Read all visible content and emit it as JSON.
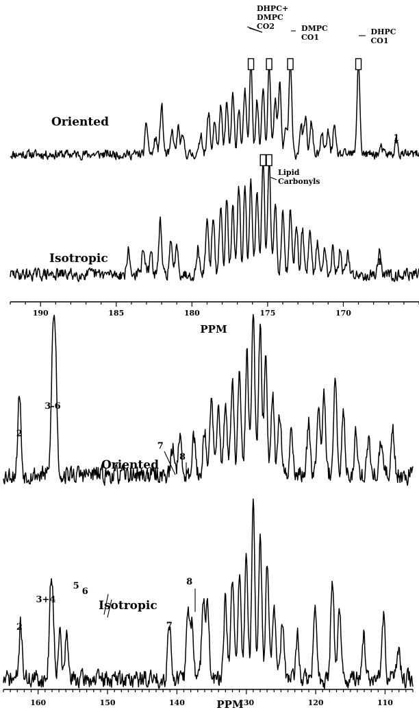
{
  "chart_data": [
    {
      "type": "line",
      "panel": "carbonyl region",
      "xlabel": "PPM",
      "xlim": [
        192,
        165
      ],
      "x_ticks": [
        190,
        185,
        180,
        175,
        170
      ],
      "series": [
        {
          "name": "Oriented",
          "peaks": [
            {
              "x": 183.0,
              "y": 0.4
            },
            {
              "x": 182.4,
              "y": 0.22
            },
            {
              "x": 182.0,
              "y": 0.66
            },
            {
              "x": 181.3,
              "y": 0.3
            },
            {
              "x": 180.9,
              "y": 0.35
            },
            {
              "x": 180.6,
              "y": 0.22
            },
            {
              "x": 179.4,
              "y": 0.28
            },
            {
              "x": 178.9,
              "y": 0.55
            },
            {
              "x": 178.5,
              "y": 0.45
            },
            {
              "x": 178.1,
              "y": 0.62
            },
            {
              "x": 177.7,
              "y": 0.68
            },
            {
              "x": 177.3,
              "y": 0.78
            },
            {
              "x": 176.9,
              "y": 0.62
            },
            {
              "x": 176.5,
              "y": 0.85
            },
            {
              "x": 176.1,
              "y": 1.25
            },
            {
              "x": 175.7,
              "y": 0.72
            },
            {
              "x": 175.3,
              "y": 0.92
            },
            {
              "x": 174.9,
              "y": 1.25
            },
            {
              "x": 174.5,
              "y": 0.7
            },
            {
              "x": 174.2,
              "y": 0.95
            },
            {
              "x": 173.8,
              "y": 0.35
            },
            {
              "x": 173.5,
              "y": 1.25
            },
            {
              "x": 172.8,
              "y": 0.4
            },
            {
              "x": 172.5,
              "y": 0.48
            },
            {
              "x": 172.1,
              "y": 0.42
            },
            {
              "x": 171.4,
              "y": 0.25
            },
            {
              "x": 171.0,
              "y": 0.3
            },
            {
              "x": 170.6,
              "y": 0.35
            },
            {
              "x": 169.0,
              "y": 1.25
            },
            {
              "x": 167.5,
              "y": 0.08
            },
            {
              "x": 166.5,
              "y": 0.18
            }
          ],
          "annotations": [
            {
              "x": 175.6,
              "lines": [
                "DHPC+",
                "DMPC",
                "CO2"
              ]
            },
            {
              "x": 173.5,
              "lines": [
                "DMPC",
                "CO1"
              ]
            },
            {
              "x": 169.0,
              "lines": [
                "DHPC",
                "CO1"
              ]
            },
            {
              "x": 166.5,
              "lines": [
                "1"
              ]
            }
          ]
        },
        {
          "name": "Isotropic",
          "peaks": [
            {
              "x": 184.2,
              "y": 0.25
            },
            {
              "x": 183.2,
              "y": 0.3
            },
            {
              "x": 182.7,
              "y": 0.22
            },
            {
              "x": 182.1,
              "y": 0.55
            },
            {
              "x": 181.4,
              "y": 0.32
            },
            {
              "x": 181.0,
              "y": 0.35
            },
            {
              "x": 179.6,
              "y": 0.28
            },
            {
              "x": 179.0,
              "y": 0.6
            },
            {
              "x": 178.6,
              "y": 0.58
            },
            {
              "x": 178.1,
              "y": 0.72
            },
            {
              "x": 177.7,
              "y": 0.82
            },
            {
              "x": 177.3,
              "y": 0.7
            },
            {
              "x": 176.9,
              "y": 0.92
            },
            {
              "x": 176.5,
              "y": 0.88
            },
            {
              "x": 176.1,
              "y": 1.0
            },
            {
              "x": 175.7,
              "y": 0.9
            },
            {
              "x": 175.3,
              "y": 1.25
            },
            {
              "x": 174.9,
              "y": 1.25
            },
            {
              "x": 174.5,
              "y": 0.75
            },
            {
              "x": 174.0,
              "y": 0.65
            },
            {
              "x": 173.5,
              "y": 0.68
            },
            {
              "x": 173.1,
              "y": 0.55
            },
            {
              "x": 172.7,
              "y": 0.48
            },
            {
              "x": 172.2,
              "y": 0.4
            },
            {
              "x": 171.7,
              "y": 0.35
            },
            {
              "x": 171.2,
              "y": 0.3
            },
            {
              "x": 170.7,
              "y": 0.28
            },
            {
              "x": 170.2,
              "y": 0.25
            },
            {
              "x": 169.7,
              "y": 0.2
            },
            {
              "x": 167.6,
              "y": 0.28
            }
          ],
          "annotations": [
            {
              "x": 175.0,
              "lines": [
                "Lipid",
                "Carbonyls"
              ]
            },
            {
              "x": 167.6,
              "lines": [
                "1"
              ]
            }
          ]
        }
      ]
    },
    {
      "type": "line",
      "panel": "aromatic region",
      "xlabel": "PPM",
      "xlim": [
        165,
        106
      ],
      "x_ticks": [
        160,
        150,
        140,
        130,
        120,
        110
      ],
      "series": [
        {
          "name": "Oriented",
          "peaks": [
            {
              "x": 162.7,
              "y": 0.55
            },
            {
              "x": 157.9,
              "y": 0.8
            },
            {
              "x": 157.5,
              "y": 0.78
            },
            {
              "x": 140.6,
              "y": 0.18
            },
            {
              "x": 139.6,
              "y": 0.28
            },
            {
              "x": 137.6,
              "y": 0.28
            },
            {
              "x": 136.0,
              "y": 0.32
            },
            {
              "x": 135.0,
              "y": 0.52
            },
            {
              "x": 134.0,
              "y": 0.45
            },
            {
              "x": 133.0,
              "y": 0.5
            },
            {
              "x": 132.0,
              "y": 0.62
            },
            {
              "x": 131.0,
              "y": 0.68
            },
            {
              "x": 129.9,
              "y": 0.82
            },
            {
              "x": 129.0,
              "y": 1.1
            },
            {
              "x": 128.0,
              "y": 1.0
            },
            {
              "x": 127.2,
              "y": 0.78
            },
            {
              "x": 126.2,
              "y": 0.58
            },
            {
              "x": 125.2,
              "y": 0.42
            },
            {
              "x": 123.5,
              "y": 0.32
            },
            {
              "x": 121.0,
              "y": 0.38
            },
            {
              "x": 119.6,
              "y": 0.52
            },
            {
              "x": 118.8,
              "y": 0.58
            },
            {
              "x": 117.2,
              "y": 0.62
            },
            {
              "x": 116.0,
              "y": 0.4
            },
            {
              "x": 114.2,
              "y": 0.28
            },
            {
              "x": 112.4,
              "y": 0.24
            },
            {
              "x": 110.6,
              "y": 0.22
            },
            {
              "x": 108.9,
              "y": 0.32
            }
          ],
          "annotations": [
            {
              "x": 162.7,
              "lines": [
                "2"
              ]
            },
            {
              "x": 157.7,
              "lines": [
                "3-6"
              ]
            },
            {
              "x": 140.6,
              "lines": [
                "7"
              ]
            },
            {
              "x": 139.4,
              "lines": [
                "8"
              ]
            }
          ]
        },
        {
          "name": "Isotropic",
          "peaks": [
            {
              "x": 162.5,
              "y": 0.38
            },
            {
              "x": 158.2,
              "y": 0.48
            },
            {
              "x": 157.9,
              "y": 0.42
            },
            {
              "x": 156.9,
              "y": 0.34
            },
            {
              "x": 155.9,
              "y": 0.3
            },
            {
              "x": 141.1,
              "y": 0.42
            },
            {
              "x": 138.4,
              "y": 0.5
            },
            {
              "x": 137.8,
              "y": 0.38
            },
            {
              "x": 136.2,
              "y": 0.58
            },
            {
              "x": 135.6,
              "y": 0.52
            },
            {
              "x": 133.0,
              "y": 0.55
            },
            {
              "x": 132.0,
              "y": 0.7
            },
            {
              "x": 131.0,
              "y": 0.75
            },
            {
              "x": 130.0,
              "y": 0.88
            },
            {
              "x": 129.0,
              "y": 1.2
            },
            {
              "x": 128.0,
              "y": 1.0
            },
            {
              "x": 127.0,
              "y": 0.85
            },
            {
              "x": 126.0,
              "y": 0.55
            },
            {
              "x": 124.8,
              "y": 0.4
            },
            {
              "x": 122.6,
              "y": 0.3
            },
            {
              "x": 120.1,
              "y": 0.5
            },
            {
              "x": 117.6,
              "y": 0.72
            },
            {
              "x": 116.6,
              "y": 0.52
            },
            {
              "x": 113.1,
              "y": 0.32
            },
            {
              "x": 110.2,
              "y": 0.42
            },
            {
              "x": 108.1,
              "y": 0.22
            }
          ],
          "annotations": [
            {
              "x": 162.5,
              "lines": [
                "2"
              ]
            },
            {
              "x": 158.0,
              "lines": [
                "3+4"
              ]
            },
            {
              "x": 156.9,
              "lines": [
                "5"
              ]
            },
            {
              "x": 155.9,
              "lines": [
                "6"
              ]
            },
            {
              "x": 141.1,
              "lines": [
                "7"
              ]
            },
            {
              "x": 138.4,
              "lines": [
                "8"
              ]
            }
          ]
        }
      ]
    }
  ]
}
